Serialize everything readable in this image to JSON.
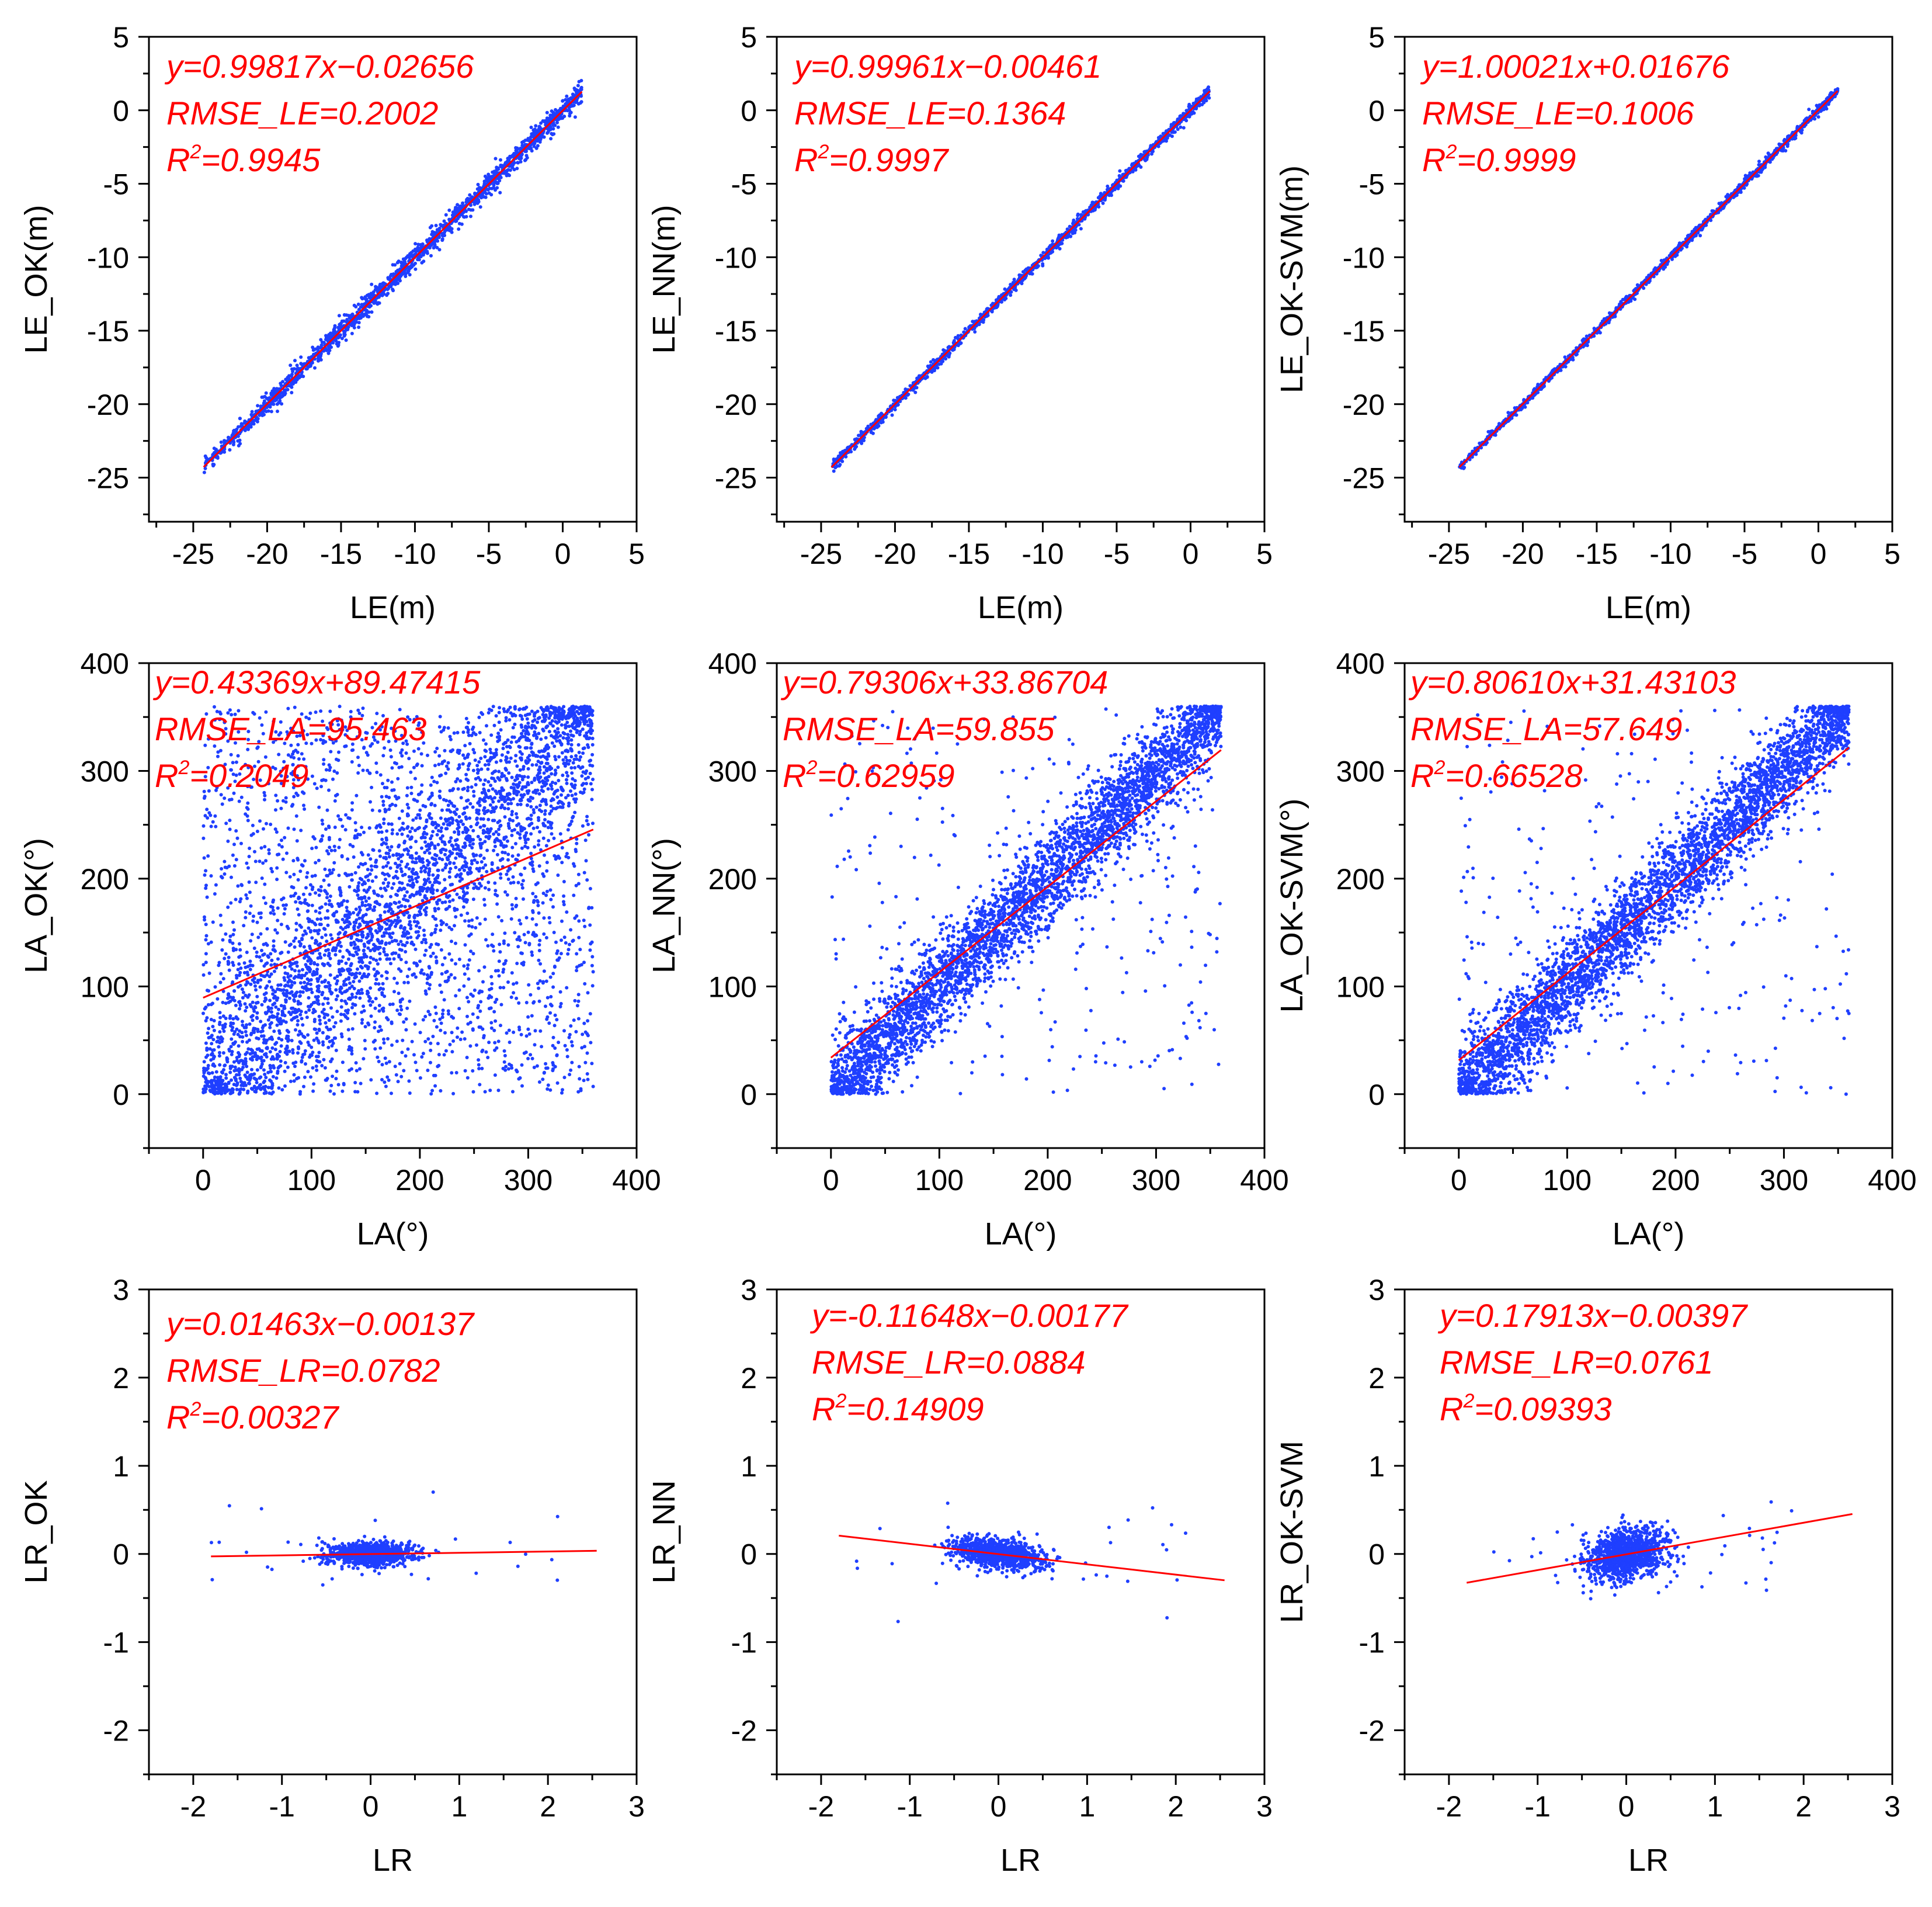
{
  "colors": {
    "points": "#1f3fff",
    "fit_line": "#ff0000",
    "annotation": "#ff0000",
    "axis": "#000000"
  },
  "chart_data": [
    {
      "type": "scatter",
      "xlabel": "LE(m)",
      "ylabel": "LE_OK(m)",
      "xlim": [
        -28,
        5
      ],
      "ylim": [
        -28,
        5
      ],
      "xticks": [
        -25,
        -20,
        -15,
        -10,
        -5,
        0,
        5
      ],
      "yticks": [
        -25,
        -20,
        -15,
        -10,
        -5,
        0,
        5
      ],
      "tick_labels_x": [
        "-25",
        "-20",
        "-15",
        "-10",
        "-5",
        "0",
        "5"
      ],
      "tick_labels_y": [
        "-25",
        "-20",
        "-15",
        "-10",
        "-5",
        "0",
        "5"
      ],
      "annotation": {
        "equation": "y=0.99817x−0.02656",
        "rmse": "RMSE_LE=0.2002",
        "r2_prefix": "R",
        "r2_sup": "2",
        "r2_value": "=0.9945"
      },
      "fit": {
        "slope": 0.99817,
        "intercept": -0.02656,
        "x_range": [
          -24.3,
          1.3
        ]
      },
      "scatter": {
        "kind": "linear",
        "x_range": [
          -24.3,
          1.3
        ],
        "spread": 0.5,
        "n": 1600,
        "seed": 11
      }
    },
    {
      "type": "scatter",
      "xlabel": "LE(m)",
      "ylabel": "LE_NN(m)",
      "xlim": [
        -28,
        5
      ],
      "ylim": [
        -28,
        5
      ],
      "xticks": [
        -25,
        -20,
        -15,
        -10,
        -5,
        0,
        5
      ],
      "yticks": [
        -25,
        -20,
        -15,
        -10,
        -5,
        0,
        5
      ],
      "tick_labels_x": [
        "-25",
        "-20",
        "-15",
        "-10",
        "-5",
        "0",
        "5"
      ],
      "tick_labels_y": [
        "-25",
        "-20",
        "-15",
        "-10",
        "-5",
        "0",
        "5"
      ],
      "annotation": {
        "equation": "y=0.99961x−0.00461",
        "rmse": "RMSE_LE=0.1364",
        "r2_prefix": "R",
        "r2_sup": "2",
        "r2_value": "=0.9997"
      },
      "fit": {
        "slope": 0.99961,
        "intercept": -0.00461,
        "x_range": [
          -24.3,
          1.3
        ]
      },
      "scatter": {
        "kind": "linear",
        "x_range": [
          -24.3,
          1.3
        ],
        "spread": 0.25,
        "n": 1400,
        "seed": 22
      }
    },
    {
      "type": "scatter",
      "xlabel": "LE(m)",
      "ylabel": "LE_OK-SVM(m)",
      "xlim": [
        -28,
        5
      ],
      "ylim": [
        -28,
        5
      ],
      "xticks": [
        -25,
        -20,
        -15,
        -10,
        -5,
        0,
        5
      ],
      "yticks": [
        -25,
        -20,
        -15,
        -10,
        -5,
        0,
        5
      ],
      "tick_labels_x": [
        "-25",
        "-20",
        "-15",
        "-10",
        "-5",
        "0",
        "5"
      ],
      "tick_labels_y": [
        "-25",
        "-20",
        "-15",
        "-10",
        "-5",
        "0",
        "5"
      ],
      "annotation": {
        "equation": "y=1.00021x+0.01676",
        "rmse": "RMSE_LE=0.1006",
        "r2_prefix": "R",
        "r2_sup": "2",
        "r2_value": "=0.9999"
      },
      "fit": {
        "slope": 1.00021,
        "intercept": 0.01676,
        "x_range": [
          -24.3,
          1.3
        ]
      },
      "scatter": {
        "kind": "linear",
        "x_range": [
          -24.3,
          1.3
        ],
        "spread": 0.2,
        "n": 1400,
        "seed": 33
      }
    },
    {
      "type": "scatter",
      "xlabel": "LA(°)",
      "ylabel": "LA_OK(°)",
      "xlim": [
        -50,
        400
      ],
      "ylim": [
        -50,
        400
      ],
      "xticks": [
        0,
        100,
        200,
        300,
        400
      ],
      "yticks": [
        0,
        100,
        200,
        300,
        400
      ],
      "tick_labels_x": [
        "0",
        "100",
        "200",
        "300",
        "400"
      ],
      "tick_labels_y": [
        "0",
        "100",
        "200",
        "300",
        "400"
      ],
      "annotation": {
        "equation": "y=0.43369x+89.47415",
        "rmse": "RMSE_LA=95.463",
        "r2_prefix": "R",
        "r2_sup": "2",
        "r2_value": "=0.2049"
      },
      "fit": {
        "slope": 0.43369,
        "intercept": 89.47415,
        "x_range": [
          0,
          360
        ]
      },
      "scatter": {
        "kind": "angular",
        "x_range": [
          0,
          360
        ],
        "spread": 45,
        "uniform_frac": 0.45,
        "n": 4500,
        "seed": 44
      }
    },
    {
      "type": "scatter",
      "xlabel": "LA(°)",
      "ylabel": "LA_NN(°)",
      "xlim": [
        -50,
        400
      ],
      "ylim": [
        -50,
        400
      ],
      "xticks": [
        0,
        100,
        200,
        300,
        400
      ],
      "yticks": [
        0,
        100,
        200,
        300,
        400
      ],
      "tick_labels_x": [
        "0",
        "100",
        "200",
        "300",
        "400"
      ],
      "tick_labels_y": [
        "0",
        "100",
        "200",
        "300",
        "400"
      ],
      "annotation": {
        "equation": "y=0.79306x+33.86704",
        "rmse": "RMSE_LA=59.855",
        "r2_prefix": "R",
        "r2_sup": "2",
        "r2_value": "=0.62959"
      },
      "fit": {
        "slope": 0.79306,
        "intercept": 33.86704,
        "x_range": [
          0,
          360
        ]
      },
      "scatter": {
        "kind": "angular",
        "x_range": [
          0,
          360
        ],
        "spread": 22,
        "uniform_frac": 0.08,
        "n": 4000,
        "seed": 55
      }
    },
    {
      "type": "scatter",
      "xlabel": "LA(°)",
      "ylabel": "LA_OK-SVM(°)",
      "xlim": [
        -50,
        400
      ],
      "ylim": [
        -50,
        400
      ],
      "xticks": [
        0,
        100,
        200,
        300,
        400
      ],
      "yticks": [
        0,
        100,
        200,
        300,
        400
      ],
      "tick_labels_x": [
        "0",
        "100",
        "200",
        "300",
        "400"
      ],
      "tick_labels_y": [
        "0",
        "100",
        "200",
        "300",
        "400"
      ],
      "annotation": {
        "equation": "y=0.80610x+31.43103",
        "rmse": "RMSE_LA=57.649",
        "r2_prefix": "R",
        "r2_sup": "2",
        "r2_value": "=0.66528"
      },
      "fit": {
        "slope": 0.8061,
        "intercept": 31.43103,
        "x_range": [
          0,
          360
        ]
      },
      "scatter": {
        "kind": "angular",
        "x_range": [
          0,
          360
        ],
        "spread": 22,
        "uniform_frac": 0.07,
        "n": 4000,
        "seed": 66
      }
    },
    {
      "type": "scatter",
      "xlabel": "LR",
      "ylabel": "LR_OK",
      "xlim": [
        -2.5,
        3
      ],
      "ylim": [
        -2.5,
        3
      ],
      "xticks": [
        -2,
        -1,
        0,
        1,
        2,
        3
      ],
      "yticks": [
        -2,
        -1,
        0,
        1,
        2,
        3
      ],
      "tick_labels_x": [
        "-2",
        "-1",
        "0",
        "1",
        "2",
        "3"
      ],
      "tick_labels_y": [
        "-2",
        "-1",
        "0",
        "1",
        "2",
        "3"
      ],
      "annotation": {
        "equation": "y=0.01463x−0.00137",
        "rmse": "RMSE_LR=0.0782",
        "r2_prefix": "R",
        "r2_sup": "2",
        "r2_value": "=0.00327"
      },
      "fit": {
        "slope": 0.01463,
        "intercept": -0.00137,
        "x_range": [
          -1.8,
          2.55
        ]
      },
      "scatter": {
        "kind": "blob",
        "sx": 0.22,
        "sy": 0.06,
        "slope": 0.01463,
        "n": 1100,
        "seed": 77
      }
    },
    {
      "type": "scatter",
      "xlabel": "LR",
      "ylabel": "LR_NN",
      "xlim": [
        -2.5,
        3
      ],
      "ylim": [
        -2.5,
        3
      ],
      "xticks": [
        -2,
        -1,
        0,
        1,
        2,
        3
      ],
      "yticks": [
        -2,
        -1,
        0,
        1,
        2,
        3
      ],
      "tick_labels_x": [
        "-2",
        "-1",
        "0",
        "1",
        "2",
        "3"
      ],
      "tick_labels_y": [
        "-2",
        "-1",
        "0",
        "1",
        "2",
        "3"
      ],
      "annotation": {
        "equation": "y=-0.11648x−0.00177",
        "rmse": "RMSE_LR=0.0884",
        "r2_prefix": "R",
        "r2_sup": "2",
        "r2_value": "=0.14909"
      },
      "fit": {
        "slope": -0.11648,
        "intercept": -0.00177,
        "x_range": [
          -1.8,
          2.55
        ]
      },
      "scatter": {
        "kind": "blob",
        "sx": 0.25,
        "sy": 0.08,
        "slope": -0.11648,
        "n": 1000,
        "seed": 88
      }
    },
    {
      "type": "scatter",
      "xlabel": "LR",
      "ylabel": "LR_OK-SVM",
      "xlim": [
        -2.5,
        3
      ],
      "ylim": [
        -2.5,
        3
      ],
      "xticks": [
        -2,
        -1,
        0,
        1,
        2,
        3
      ],
      "yticks": [
        -2,
        -1,
        0,
        1,
        2,
        3
      ],
      "tick_labels_x": [
        "-2",
        "-1",
        "0",
        "1",
        "2",
        "3"
      ],
      "tick_labels_y": [
        "-2",
        "-1",
        "0",
        "1",
        "2",
        "3"
      ],
      "annotation": {
        "equation": "y=0.17913x−0.00397",
        "rmse": "RMSE_LR=0.0761",
        "r2_prefix": "R",
        "r2_sup": "2",
        "r2_value": "=0.09393"
      },
      "fit": {
        "slope": 0.17913,
        "intercept": -0.00397,
        "x_range": [
          -1.8,
          2.55
        ]
      },
      "scatter": {
        "kind": "blob",
        "sx": 0.22,
        "sy": 0.14,
        "slope": 0.17913,
        "n": 1100,
        "seed": 99
      }
    }
  ]
}
